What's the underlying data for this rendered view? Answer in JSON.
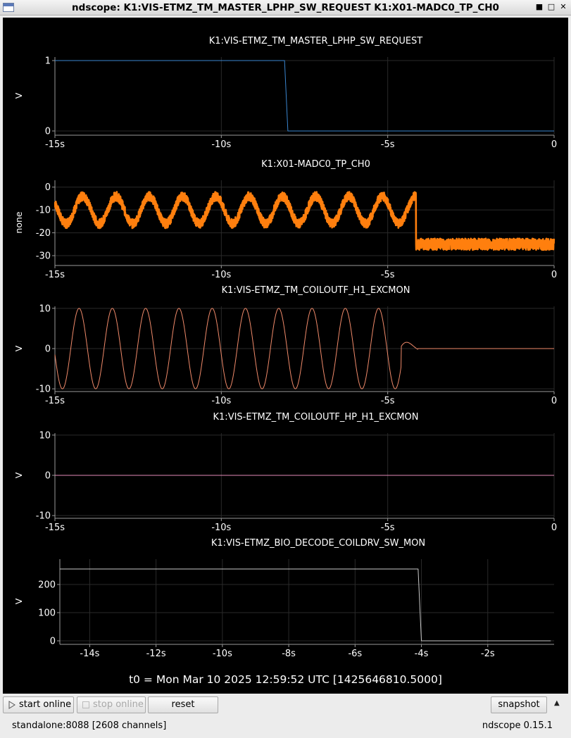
{
  "window": {
    "title": "ndscope: K1:VIS-ETMZ_TM_MASTER_LPHP_SW_REQUEST K1:X01-MADC0_TP_CH0"
  },
  "colors": {
    "blue": "#3a86d0",
    "orange": "#ff7f0e",
    "salmon": "#f08a6a",
    "pink": "#e58ab8",
    "gray": "#c8c8c8",
    "grid": "#2a2a2a",
    "axis": "#9a9a9a"
  },
  "plots": [
    {
      "title": "K1:VIS-ETMZ_TM_MASTER_LPHP_SW_REQUEST",
      "ylabel": "V",
      "xticks": [
        "-15s",
        "-10s",
        "-5s",
        "0"
      ],
      "yticks": [
        "1",
        "0"
      ]
    },
    {
      "title": "K1:X01-MADC0_TP_CH0",
      "ylabel": "none",
      "xticks": [
        "-15s",
        "-10s",
        "-5s",
        "0"
      ],
      "yticks": [
        "0",
        "-10",
        "-20",
        "-30"
      ]
    },
    {
      "title": "K1:VIS-ETMZ_TM_COILOUTF_H1_EXCMON",
      "ylabel": "V",
      "xticks": [
        "-15s",
        "-10s",
        "-5s",
        "0"
      ],
      "yticks": [
        "10",
        "0",
        "-10"
      ]
    },
    {
      "title": "K1:VIS-ETMZ_TM_COILOUTF_HP_H1_EXCMON",
      "ylabel": "V",
      "xticks": [
        "-15s",
        "-10s",
        "-5s",
        "0"
      ],
      "yticks": [
        "10",
        "0",
        "-10"
      ]
    },
    {
      "title": "K1:VIS-ETMZ_BIO_DECODE_COILDRV_SW_MON",
      "ylabel": "V",
      "xticks": [
        "-14s",
        "-12s",
        "-10s",
        "-8s",
        "-6s",
        "-4s",
        "-2s"
      ],
      "yticks": [
        "200",
        "100",
        "0"
      ]
    }
  ],
  "t0_label": "t0 = Mon Mar 10 2025 12:59:52 UTC [1425646810.5000]",
  "buttons": {
    "start_online": "start online",
    "stop_online": "stop online",
    "reset": "reset",
    "snapshot": "snapshot"
  },
  "status": {
    "server": "standalone:8088  [2608 channels]",
    "version": "ndscope 0.15.1"
  }
}
